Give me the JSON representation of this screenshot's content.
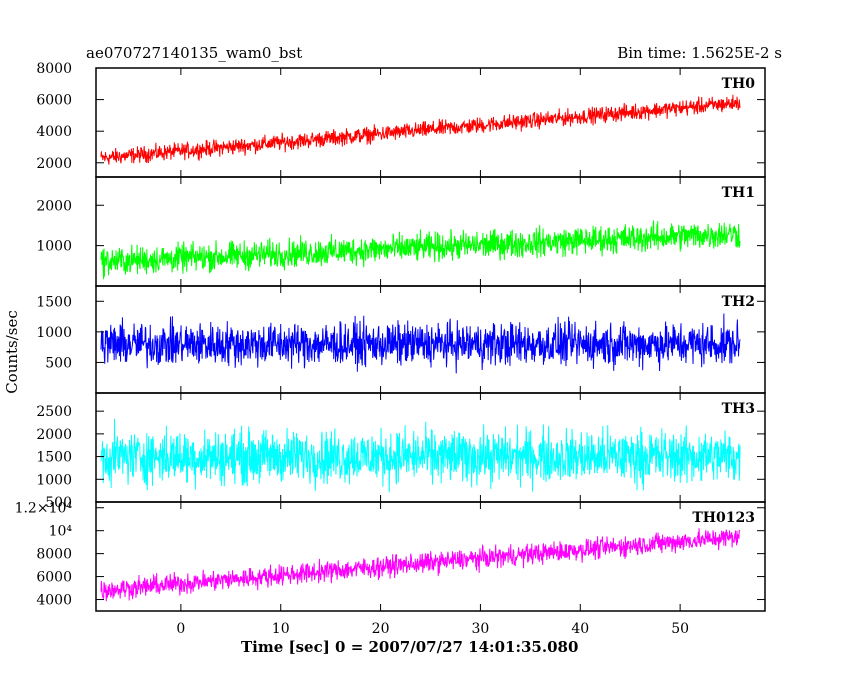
{
  "header": {
    "title": "ae070727140135_wam0_bst",
    "bin_time": "Bin time: 1.5625E-2 s"
  },
  "chart_data": {
    "type": "line",
    "x_label": "Time [sec] 0 = 2007/07/27 14:01:35.080",
    "y_label": "Counts/sec",
    "xlim": [
      -8.5,
      58.5
    ],
    "x_ticks": [
      "0",
      "10",
      "20",
      "30",
      "40",
      "50"
    ],
    "x_tick_values": [
      0,
      10,
      20,
      30,
      40,
      50
    ],
    "x_data_range": [
      -8,
      56
    ],
    "panels": [
      {
        "name": "TH0",
        "color": "#ff0000",
        "ylim": [
          1100,
          8000
        ],
        "y_ticks": [
          "2000",
          "4000",
          "6000",
          "8000"
        ],
        "y_tick_values": [
          2000,
          4000,
          6000,
          8000
        ],
        "trend": {
          "x": [
            -8,
            56
          ],
          "y": [
            2300,
            5800
          ]
        },
        "noise_amplitude": 650
      },
      {
        "name": "TH1",
        "color": "#00ff00",
        "ylim": [
          0,
          2700
        ],
        "y_ticks": [
          "1000",
          "2000"
        ],
        "y_tick_values": [
          1000,
          2000
        ],
        "trend": {
          "x": [
            -8,
            56
          ],
          "y": [
            600,
            1300
          ]
        },
        "noise_amplitude": 450
      },
      {
        "name": "TH2",
        "color": "#0000ff",
        "ylim": [
          0,
          1750
        ],
        "y_ticks": [
          "500",
          "1000",
          "1500"
        ],
        "y_tick_values": [
          500,
          1000,
          1500
        ],
        "trend": {
          "x": [
            -8,
            56
          ],
          "y": [
            800,
            800
          ]
        },
        "noise_amplitude": 450
      },
      {
        "name": "TH3",
        "color": "#00ffff",
        "ylim": [
          500,
          2900
        ],
        "y_ticks": [
          "500",
          "1000",
          "1500",
          "2000",
          "2500"
        ],
        "y_tick_values": [
          500,
          1000,
          1500,
          2000,
          2500
        ],
        "trend": {
          "x": [
            -8,
            56
          ],
          "y": [
            1500,
            1500
          ]
        },
        "noise_amplitude": 750
      },
      {
        "name": "TH0123",
        "color": "#ff00ff",
        "ylim": [
          3000,
          12500
        ],
        "y_ticks": [
          "4000",
          "6000",
          "8000",
          "10⁴",
          "1.2×10⁴"
        ],
        "y_tick_values": [
          4000,
          6000,
          8000,
          10000,
          12000
        ],
        "trend": {
          "x": [
            -8,
            56
          ],
          "y": [
            4800,
            9500
          ]
        },
        "noise_amplitude": 1150
      }
    ]
  }
}
